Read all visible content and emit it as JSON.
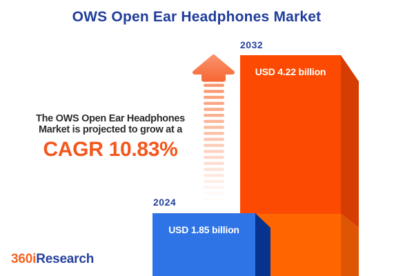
{
  "title": "OWS Open Ear Headphones Market",
  "annotation": {
    "line1": "The OWS Open Ear Headphones",
    "line2": "Market is projected to grow at a",
    "cagr": "CAGR 10.83%"
  },
  "bars": {
    "y2024": {
      "year": "2024",
      "value_label": "USD 1.85 billion"
    },
    "y2032": {
      "year": "2032",
      "value_label": "USD 4.22 billion"
    }
  },
  "logo": {
    "prefix": "360i",
    "suffix": "Research"
  },
  "colors": {
    "background": "#ffffff",
    "title_blue": "#203d9b",
    "year_label_blue": "#24409c",
    "annotation_text": "#2b2b2b",
    "cagr_orange": "#f4561c",
    "bar2024_front": "#2f74e6",
    "bar2024_side": "#05338f",
    "bar2032_front_top": "#fc4a02",
    "bar2032_front_bottom": "#ff6600",
    "bar2032_side_top": "#d63d02",
    "bar2032_side_bottom": "#de5604",
    "arrow": "#f98f64",
    "arrow_light": "#fa9068",
    "arrow_dark": "#f76a38",
    "logo_orange": "#f26424",
    "logo_blue": "#26419c"
  },
  "chart_data": {
    "type": "bar",
    "title": "OWS Open Ear Headphones Market",
    "categories": [
      "2024",
      "2032"
    ],
    "values": [
      1.85,
      4.22
    ],
    "unit": "USD billion",
    "value_labels": [
      "USD 1.85 billion",
      "USD 4.22 billion"
    ],
    "cagr_percent": 10.83,
    "annotation": "The OWS Open Ear Headphones Market is projected to grow at a CAGR 10.83%",
    "orientation": "vertical",
    "axes": "none",
    "grid": false,
    "legend": "none",
    "bar_colors": [
      "#2f74e6",
      "#fc4a02"
    ],
    "style": "3d-infographic"
  }
}
